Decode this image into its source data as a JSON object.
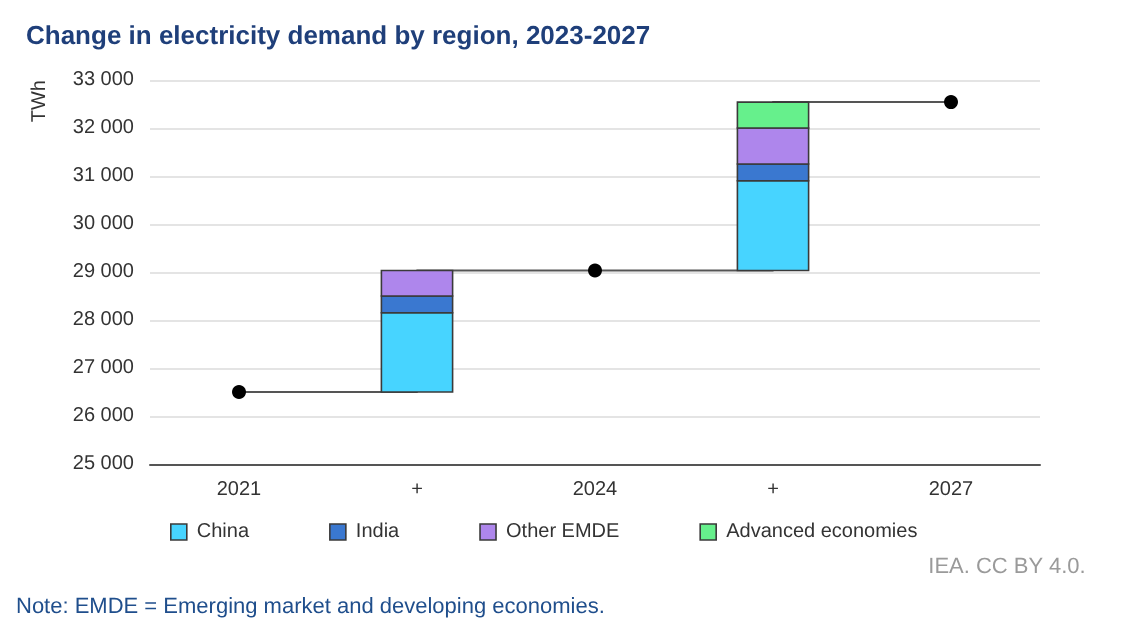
{
  "chart_data": {
    "type": "bar",
    "title": "Change in electricity demand by region, 2023-2027",
    "ylabel": "TWh",
    "categories": [
      "2021",
      "+",
      "2024",
      "+",
      "2027"
    ],
    "series": [
      {
        "name": "China",
        "color": "#47d4ff",
        "base": [
          null,
          26500,
          null,
          29030,
          null
        ],
        "values": [
          null,
          1650,
          null,
          1870,
          null
        ]
      },
      {
        "name": "India",
        "color": "#3a78d0",
        "base": [
          null,
          28150,
          null,
          30900,
          null
        ],
        "values": [
          null,
          350,
          null,
          350,
          null
        ]
      },
      {
        "name": "Other EMDE",
        "color": "#ae86ec",
        "base": [
          null,
          28500,
          null,
          31250,
          null
        ],
        "values": [
          null,
          530,
          null,
          750,
          null
        ]
      },
      {
        "name": "Advanced economies",
        "color": "#66f08c",
        "base": [
          null,
          null,
          null,
          32000,
          null
        ],
        "values": [
          null,
          null,
          null,
          540,
          null
        ]
      },
      {
        "type": "step",
        "color": "#000000",
        "values": [
          26500,
          null,
          29030,
          null,
          32540
        ]
      }
    ],
    "ylim": [
      25000,
      33000
    ],
    "yticks": [
      {
        "value": 25000,
        "label": "25 000"
      },
      {
        "value": 26000,
        "label": "26 000"
      },
      {
        "value": 27000,
        "label": "27 000"
      },
      {
        "value": 28000,
        "label": "28 000"
      },
      {
        "value": 29000,
        "label": "29 000"
      },
      {
        "value": 30000,
        "label": "30 000"
      },
      {
        "value": 31000,
        "label": "31 000"
      },
      {
        "value": 32000,
        "label": "32 000"
      },
      {
        "value": 33000,
        "label": "33 000"
      }
    ],
    "grid": "y",
    "legend": "bottom",
    "marker": "circle",
    "annotations": [
      "Note: EMDE = Emerging market and developing economies.",
      "IEA. CC BY 4.0."
    ]
  }
}
